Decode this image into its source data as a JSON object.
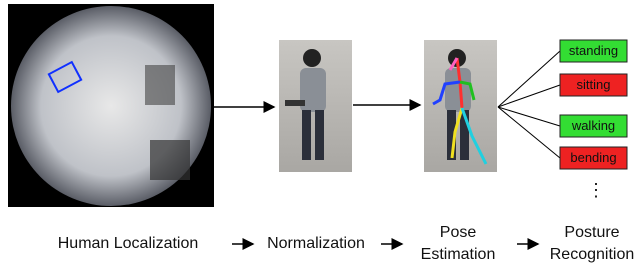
{
  "stages": [
    {
      "lines": [
        "Human Localization"
      ]
    },
    {
      "lines": [
        "Normalization"
      ]
    },
    {
      "lines": [
        "Pose",
        "Estimation"
      ]
    },
    {
      "lines": [
        "Posture",
        "Recognition"
      ]
    }
  ],
  "postures": [
    {
      "label": "standing",
      "color": "#33dd33"
    },
    {
      "label": "sitting",
      "color": "#ee2222"
    },
    {
      "label": "walking",
      "color": "#33dd33"
    },
    {
      "label": "bending",
      "color": "#ee2222"
    }
  ],
  "more": "⋮"
}
